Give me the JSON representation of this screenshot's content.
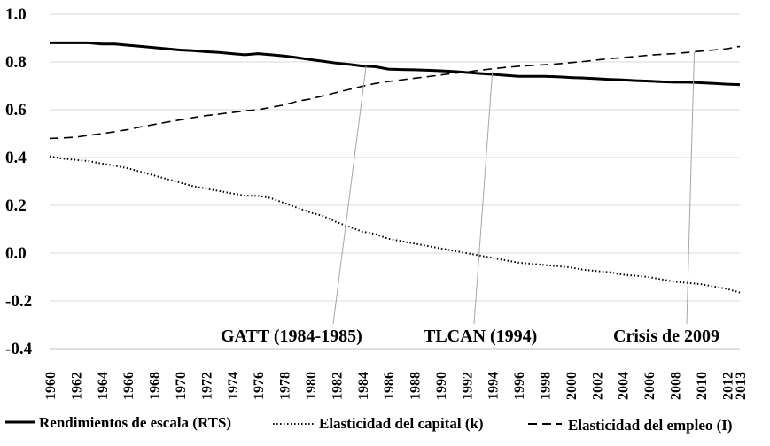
{
  "chart_data": {
    "type": "line",
    "title": "",
    "xlabel": "",
    "ylabel": "",
    "ylim": [
      -0.4,
      1.0
    ],
    "yticks": [
      -0.4,
      -0.2,
      0.0,
      0.2,
      0.4,
      0.6,
      0.8,
      1.0
    ],
    "ytick_labels": [
      "-0.4",
      "-0.2",
      "0.0",
      "0.2",
      "0.4",
      "0.6",
      "0.8",
      "1.0"
    ],
    "grid": "horizontal",
    "legend_position": "bottom",
    "x": [
      1960,
      1961,
      1962,
      1963,
      1964,
      1965,
      1966,
      1967,
      1968,
      1969,
      1970,
      1971,
      1972,
      1973,
      1974,
      1975,
      1976,
      1977,
      1978,
      1979,
      1980,
      1981,
      1982,
      1983,
      1984,
      1985,
      1986,
      1987,
      1988,
      1989,
      1990,
      1991,
      1992,
      1993,
      1994,
      1995,
      1996,
      1997,
      1998,
      1999,
      2000,
      2001,
      2002,
      2003,
      2004,
      2005,
      2006,
      2007,
      2008,
      2009,
      2010,
      2011,
      2012,
      2013
    ],
    "xtick_labels": [
      "1960",
      "1962",
      "1964",
      "1966",
      "1968",
      "1970",
      "1972",
      "1974",
      "1976",
      "1978",
      "1980",
      "1982",
      "1984",
      "1986",
      "1988",
      "1990",
      "1992",
      "1994",
      "1996",
      "1998",
      "2000",
      "2002",
      "2004",
      "2006",
      "2008",
      "2010",
      "2012",
      "2013"
    ],
    "series": [
      {
        "name": "Rendimientos de escala (RTS)",
        "style": "solid",
        "values": [
          0.88,
          0.88,
          0.88,
          0.88,
          0.875,
          0.875,
          0.87,
          0.865,
          0.86,
          0.855,
          0.85,
          0.847,
          0.843,
          0.84,
          0.835,
          0.83,
          0.835,
          0.83,
          0.825,
          0.818,
          0.81,
          0.803,
          0.795,
          0.79,
          0.783,
          0.78,
          0.77,
          0.768,
          0.767,
          0.765,
          0.763,
          0.76,
          0.756,
          0.752,
          0.748,
          0.744,
          0.74,
          0.74,
          0.74,
          0.738,
          0.735,
          0.733,
          0.73,
          0.727,
          0.725,
          0.722,
          0.72,
          0.717,
          0.715,
          0.715,
          0.713,
          0.71,
          0.707,
          0.705
        ]
      },
      {
        "name": "Elasticidad del capital (k)",
        "style": "dotted",
        "values": [
          0.405,
          0.395,
          0.39,
          0.385,
          0.375,
          0.365,
          0.355,
          0.34,
          0.325,
          0.31,
          0.295,
          0.28,
          0.27,
          0.26,
          0.25,
          0.24,
          0.24,
          0.23,
          0.21,
          0.19,
          0.17,
          0.155,
          0.13,
          0.11,
          0.09,
          0.08,
          0.06,
          0.05,
          0.04,
          0.03,
          0.02,
          0.01,
          0.0,
          -0.01,
          -0.02,
          -0.03,
          -0.04,
          -0.045,
          -0.05,
          -0.055,
          -0.06,
          -0.07,
          -0.075,
          -0.08,
          -0.09,
          -0.095,
          -0.1,
          -0.11,
          -0.12,
          -0.125,
          -0.13,
          -0.14,
          -0.15,
          -0.165
        ]
      },
      {
        "name": "Elasticidad del empleo (l)",
        "style": "dashed",
        "values": [
          0.48,
          0.482,
          0.485,
          0.493,
          0.5,
          0.508,
          0.517,
          0.528,
          0.538,
          0.548,
          0.557,
          0.567,
          0.575,
          0.582,
          0.588,
          0.595,
          0.6,
          0.61,
          0.62,
          0.635,
          0.645,
          0.658,
          0.672,
          0.685,
          0.698,
          0.71,
          0.718,
          0.725,
          0.732,
          0.738,
          0.745,
          0.752,
          0.758,
          0.765,
          0.771,
          0.777,
          0.782,
          0.785,
          0.788,
          0.792,
          0.797,
          0.802,
          0.808,
          0.814,
          0.818,
          0.823,
          0.828,
          0.832,
          0.835,
          0.84,
          0.845,
          0.85,
          0.855,
          0.865
        ]
      }
    ],
    "annotations": [
      {
        "text": "GATT (1984-1985)",
        "year": 1984.3,
        "value": 0.783
      },
      {
        "text": "TLCAN (1994)",
        "year": 1994,
        "value": 0.76
      },
      {
        "text": "Crisis de 2009",
        "year": 2009.5,
        "value": 0.84
      }
    ],
    "legend_labels": [
      "Rendimientos de escala (RTS)",
      "Elasticidad del capital (k)",
      "Elasticidad del empleo (I)"
    ]
  }
}
